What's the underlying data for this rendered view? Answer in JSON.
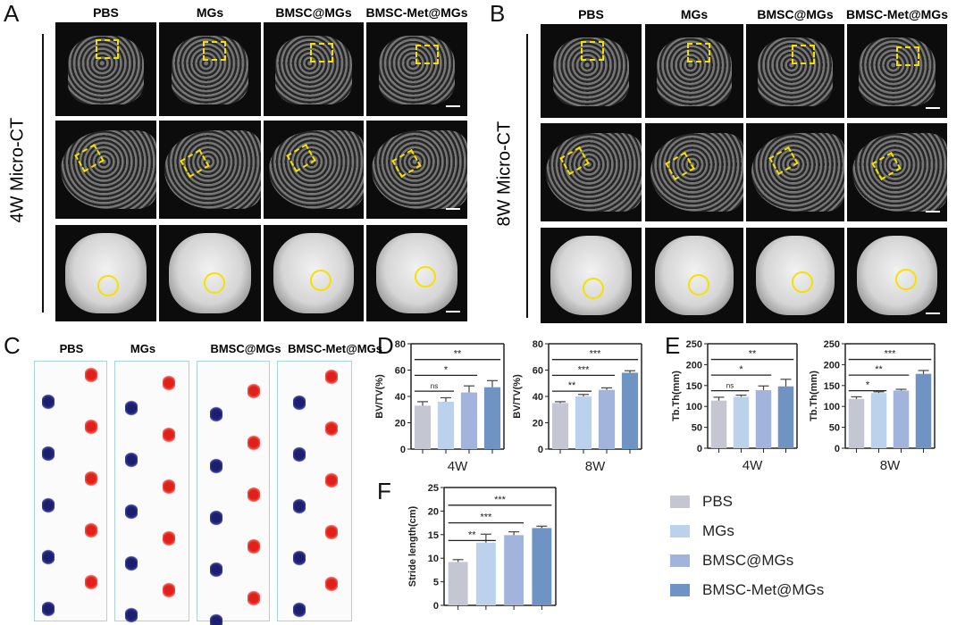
{
  "panels": {
    "a": "A",
    "b": "B",
    "c": "C",
    "d": "D",
    "e": "E",
    "f": "F"
  },
  "groups": [
    "PBS",
    "MGs",
    "BMSC@MGs",
    "BMSC-Met@MGs"
  ],
  "colors": [
    "#c4c6d2",
    "#bcd2ec",
    "#a2b4dc",
    "#6f93c3"
  ],
  "a_side_label": "4W Micro-CT",
  "b_side_label": "8W Micro-CT",
  "chart_data": [
    {
      "id": "d4w",
      "type": "bar",
      "title": "",
      "xlabel": "4W",
      "ylabel": "BV/TV(%)",
      "ylim": [
        0,
        80
      ],
      "yticks": [
        0,
        20,
        40,
        60,
        80
      ],
      "values": [
        33,
        36,
        43,
        47
      ],
      "errors": [
        3,
        3,
        5,
        5
      ],
      "significance": [
        {
          "from": 1,
          "to": 2,
          "label": "ns"
        },
        {
          "from": 1,
          "to": 3,
          "label": "*"
        },
        {
          "from": 1,
          "to": 4,
          "label": "**"
        }
      ]
    },
    {
      "id": "d8w",
      "type": "bar",
      "title": "",
      "xlabel": "8W",
      "ylabel": "BV/TV(%)",
      "ylim": [
        0,
        80
      ],
      "yticks": [
        0,
        20,
        40,
        60,
        80
      ],
      "values": [
        35,
        40,
        45,
        58
      ],
      "errors": [
        1,
        1.5,
        1.5,
        1.5
      ],
      "significance": [
        {
          "from": 1,
          "to": 2,
          "label": "**"
        },
        {
          "from": 1,
          "to": 3,
          "label": "***"
        },
        {
          "from": 1,
          "to": 4,
          "label": "***"
        }
      ]
    },
    {
      "id": "e4w",
      "type": "bar",
      "title": "",
      "xlabel": "4W",
      "ylabel": "Tb.Th(mm)",
      "ylim": [
        0,
        250
      ],
      "yticks": [
        0,
        50,
        100,
        150,
        200,
        250
      ],
      "values": [
        114,
        123,
        139,
        148
      ],
      "errors": [
        8,
        4,
        10,
        17
      ],
      "significance": [
        {
          "from": 1,
          "to": 2,
          "label": "ns"
        },
        {
          "from": 1,
          "to": 3,
          "label": "*"
        },
        {
          "from": 1,
          "to": 4,
          "label": "**"
        }
      ]
    },
    {
      "id": "e8w",
      "type": "bar",
      "title": "",
      "xlabel": "8W",
      "ylabel": "Tb.Th(mm)",
      "ylim": [
        0,
        250
      ],
      "yticks": [
        0,
        50,
        100,
        150,
        200,
        250
      ],
      "values": [
        118,
        132,
        138,
        178
      ],
      "errors": [
        5,
        3,
        3,
        8
      ],
      "significance": [
        {
          "from": 1,
          "to": 2,
          "label": "*"
        },
        {
          "from": 1,
          "to": 3,
          "label": "**"
        },
        {
          "from": 1,
          "to": 4,
          "label": "***"
        }
      ]
    },
    {
      "id": "f",
      "type": "bar",
      "title": "",
      "xlabel": "",
      "ylabel": "Stride length(cm)",
      "ylim": [
        0,
        25
      ],
      "yticks": [
        0,
        5,
        10,
        15,
        20,
        25
      ],
      "values": [
        9.2,
        13.3,
        14.9,
        16.4
      ],
      "errors": [
        0.5,
        1.8,
        0.7,
        0.4
      ],
      "significance": [
        {
          "from": 1,
          "to": 2,
          "label": "**"
        },
        {
          "from": 1,
          "to": 3,
          "label": "***"
        },
        {
          "from": 1,
          "to": 4,
          "label": "***"
        }
      ]
    }
  ]
}
